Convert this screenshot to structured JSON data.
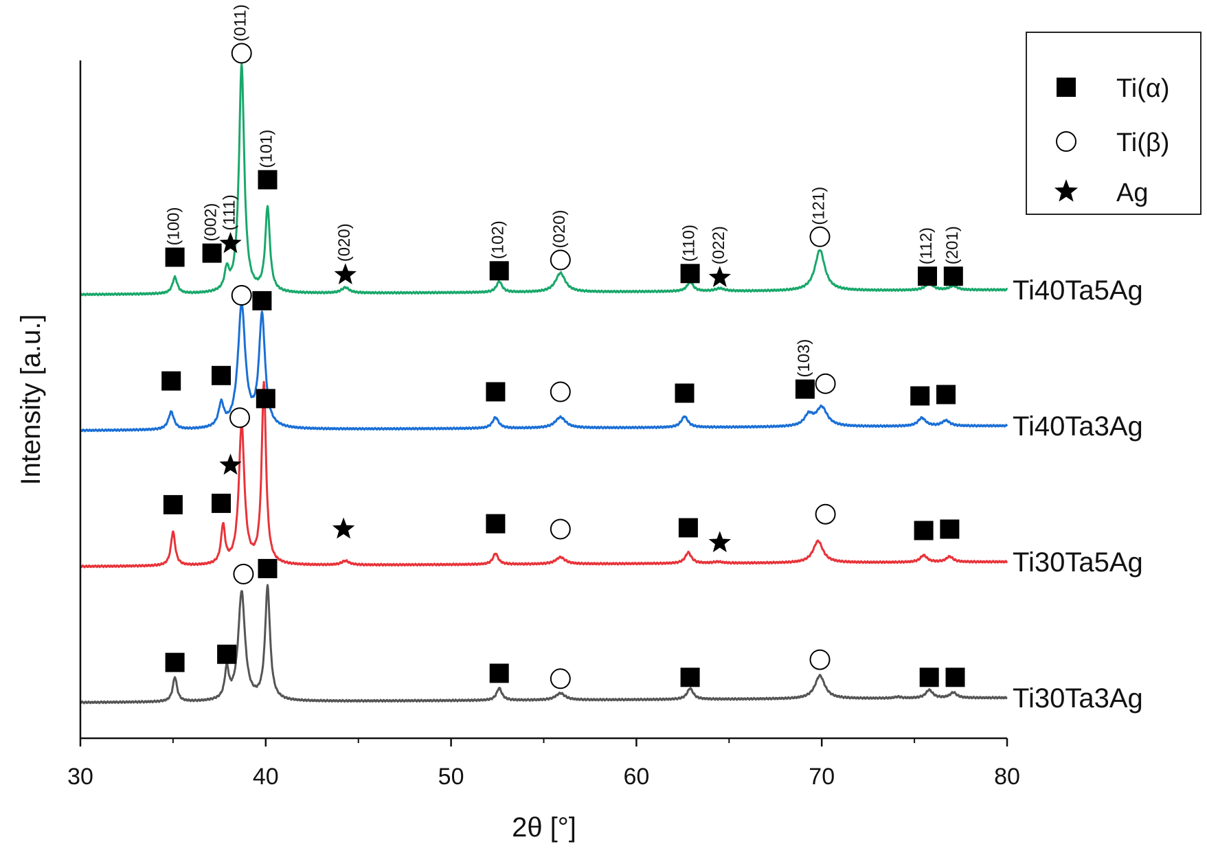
{
  "chart_data": {
    "type": "line",
    "title": "",
    "xlabel": "2θ [°]",
    "ylabel": "Intensity [a.u.]",
    "xlim": [
      30,
      80
    ],
    "xticks": [
      30,
      40,
      50,
      60,
      70,
      80
    ],
    "yticks_shown": false,
    "legend": {
      "position": "top-right",
      "entries": [
        {
          "marker": "filled-square",
          "label": "Ti(α)"
        },
        {
          "marker": "open-circle",
          "label": "Ti(β)"
        },
        {
          "marker": "star",
          "label": "Ag"
        }
      ]
    },
    "series": [
      {
        "name": "Ti40Ta5Ag",
        "color": "#19a86a",
        "baseline": 3.0,
        "peaks": [
          {
            "x": 35.1,
            "h": 0.12,
            "w": 0.16
          },
          {
            "x": 37.9,
            "h": 0.15,
            "w": 0.14
          },
          {
            "x": 38.7,
            "h": 1.68,
            "w": 0.17
          },
          {
            "x": 40.1,
            "h": 0.62,
            "w": 0.15
          },
          {
            "x": 44.3,
            "h": 0.04,
            "w": 0.25
          },
          {
            "x": 52.6,
            "h": 0.08,
            "w": 0.18
          },
          {
            "x": 55.9,
            "h": 0.14,
            "w": 0.32
          },
          {
            "x": 62.9,
            "h": 0.07,
            "w": 0.2
          },
          {
            "x": 64.5,
            "h": 0.02,
            "w": 0.3
          },
          {
            "x": 69.9,
            "h": 0.3,
            "w": 0.32
          },
          {
            "x": 75.8,
            "h": 0.05,
            "w": 0.25
          },
          {
            "x": 77.1,
            "h": 0.03,
            "w": 0.25
          }
        ],
        "markers": [
          {
            "x": 35.1,
            "y": 3.26,
            "type": "square",
            "hkl": "(100)"
          },
          {
            "x": 37.1,
            "y": 3.29,
            "type": "square",
            "hkl": "(002)"
          },
          {
            "x": 38.1,
            "y": 3.36,
            "type": "star",
            "hkl": "(111)"
          },
          {
            "x": 38.7,
            "y": 4.76,
            "type": "circle",
            "hkl": "(011)"
          },
          {
            "x": 40.1,
            "y": 3.83,
            "type": "square",
            "hkl": "(101)"
          },
          {
            "x": 44.3,
            "y": 3.13,
            "type": "star",
            "hkl": "(020)"
          },
          {
            "x": 52.6,
            "y": 3.16,
            "type": "square",
            "hkl": "(102)"
          },
          {
            "x": 55.9,
            "y": 3.24,
            "type": "circle",
            "hkl": "(020)"
          },
          {
            "x": 62.9,
            "y": 3.14,
            "type": "square",
            "hkl": "(110)"
          },
          {
            "x": 64.5,
            "y": 3.11,
            "type": "star",
            "hkl": "(022)"
          },
          {
            "x": 69.9,
            "y": 3.41,
            "type": "circle",
            "hkl": "(121)"
          },
          {
            "x": 75.7,
            "y": 3.12,
            "type": "square",
            "hkl": "(112)"
          },
          {
            "x": 77.1,
            "y": 3.12,
            "type": "square",
            "hkl": "(201)"
          }
        ]
      },
      {
        "name": "Ti40Ta3Ag",
        "color": "#1a6fd6",
        "baseline": 2.0,
        "peaks": [
          {
            "x": 34.9,
            "h": 0.13,
            "w": 0.18
          },
          {
            "x": 37.6,
            "h": 0.17,
            "w": 0.17
          },
          {
            "x": 38.7,
            "h": 0.9,
            "w": 0.24
          },
          {
            "x": 39.8,
            "h": 0.82,
            "w": 0.2
          },
          {
            "x": 52.4,
            "h": 0.08,
            "w": 0.2
          },
          {
            "x": 55.9,
            "h": 0.08,
            "w": 0.34
          },
          {
            "x": 62.6,
            "h": 0.08,
            "w": 0.22
          },
          {
            "x": 69.3,
            "h": 0.08,
            "w": 0.28
          },
          {
            "x": 70.0,
            "h": 0.14,
            "w": 0.36
          },
          {
            "x": 75.4,
            "h": 0.06,
            "w": 0.25
          },
          {
            "x": 76.7,
            "h": 0.04,
            "w": 0.25
          }
        ],
        "markers": [
          {
            "x": 34.9,
            "y": 2.35,
            "type": "square"
          },
          {
            "x": 37.6,
            "y": 2.39,
            "type": "square"
          },
          {
            "x": 38.7,
            "y": 2.98,
            "type": "circle"
          },
          {
            "x": 39.8,
            "y": 2.94,
            "type": "square"
          },
          {
            "x": 52.4,
            "y": 2.27,
            "type": "square"
          },
          {
            "x": 55.9,
            "y": 2.27,
            "type": "circle"
          },
          {
            "x": 62.6,
            "y": 2.26,
            "type": "square"
          },
          {
            "x": 69.1,
            "y": 2.29,
            "type": "square",
            "hkl": "(103)"
          },
          {
            "x": 70.2,
            "y": 2.33,
            "type": "circle"
          },
          {
            "x": 75.3,
            "y": 2.24,
            "type": "square"
          },
          {
            "x": 76.7,
            "y": 2.25,
            "type": "square"
          }
        ]
      },
      {
        "name": "Ti30Ta5Ag",
        "color": "#e8333a",
        "baseline": 1.0,
        "peaks": [
          {
            "x": 35.0,
            "h": 0.25,
            "w": 0.14
          },
          {
            "x": 37.7,
            "h": 0.28,
            "w": 0.13
          },
          {
            "x": 38.7,
            "h": 1.03,
            "w": 0.18
          },
          {
            "x": 39.9,
            "h": 1.33,
            "w": 0.14
          },
          {
            "x": 44.3,
            "h": 0.03,
            "w": 0.25
          },
          {
            "x": 52.4,
            "h": 0.08,
            "w": 0.17
          },
          {
            "x": 55.9,
            "h": 0.05,
            "w": 0.3
          },
          {
            "x": 62.8,
            "h": 0.08,
            "w": 0.2
          },
          {
            "x": 64.4,
            "h": 0.01,
            "w": 0.3
          },
          {
            "x": 69.8,
            "h": 0.16,
            "w": 0.32
          },
          {
            "x": 75.5,
            "h": 0.05,
            "w": 0.22
          },
          {
            "x": 76.9,
            "h": 0.04,
            "w": 0.22
          }
        ],
        "markers": [
          {
            "x": 35.0,
            "y": 1.44,
            "type": "square"
          },
          {
            "x": 37.6,
            "y": 1.45,
            "type": "square"
          },
          {
            "x": 38.1,
            "y": 1.73,
            "type": "star"
          },
          {
            "x": 38.6,
            "y": 2.08,
            "type": "circle"
          },
          {
            "x": 40.0,
            "y": 2.22,
            "type": "square"
          },
          {
            "x": 44.2,
            "y": 1.26,
            "type": "star"
          },
          {
            "x": 52.4,
            "y": 1.3,
            "type": "square"
          },
          {
            "x": 55.9,
            "y": 1.26,
            "type": "circle"
          },
          {
            "x": 62.8,
            "y": 1.27,
            "type": "square"
          },
          {
            "x": 64.5,
            "y": 1.16,
            "type": "star"
          },
          {
            "x": 70.2,
            "y": 1.37,
            "type": "circle"
          },
          {
            "x": 75.5,
            "y": 1.25,
            "type": "square"
          },
          {
            "x": 76.9,
            "y": 1.26,
            "type": "square"
          }
        ]
      },
      {
        "name": "Ti30Ta3Ag",
        "color": "#555555",
        "baseline": 0.0,
        "peaks": [
          {
            "x": 35.1,
            "h": 0.18,
            "w": 0.14
          },
          {
            "x": 37.9,
            "h": 0.22,
            "w": 0.13
          },
          {
            "x": 38.7,
            "h": 0.8,
            "w": 0.22
          },
          {
            "x": 40.1,
            "h": 0.83,
            "w": 0.16
          },
          {
            "x": 52.6,
            "h": 0.09,
            "w": 0.17
          },
          {
            "x": 55.9,
            "h": 0.05,
            "w": 0.3
          },
          {
            "x": 62.9,
            "h": 0.08,
            "w": 0.2
          },
          {
            "x": 69.9,
            "h": 0.17,
            "w": 0.32
          },
          {
            "x": 74.1,
            "h": 0.01,
            "w": 0.2
          },
          {
            "x": 75.8,
            "h": 0.06,
            "w": 0.22
          },
          {
            "x": 77.1,
            "h": 0.04,
            "w": 0.22
          }
        ],
        "markers": [
          {
            "x": 35.1,
            "y": 0.28,
            "type": "square"
          },
          {
            "x": 37.9,
            "y": 0.34,
            "type": "square"
          },
          {
            "x": 38.8,
            "y": 0.93,
            "type": "circle"
          },
          {
            "x": 40.1,
            "y": 0.97,
            "type": "square"
          },
          {
            "x": 52.6,
            "y": 0.2,
            "type": "square"
          },
          {
            "x": 55.9,
            "y": 0.16,
            "type": "circle"
          },
          {
            "x": 62.9,
            "y": 0.17,
            "type": "square"
          },
          {
            "x": 69.9,
            "y": 0.3,
            "type": "circle"
          },
          {
            "x": 75.8,
            "y": 0.17,
            "type": "square"
          },
          {
            "x": 77.2,
            "y": 0.17,
            "type": "square"
          }
        ]
      }
    ]
  }
}
